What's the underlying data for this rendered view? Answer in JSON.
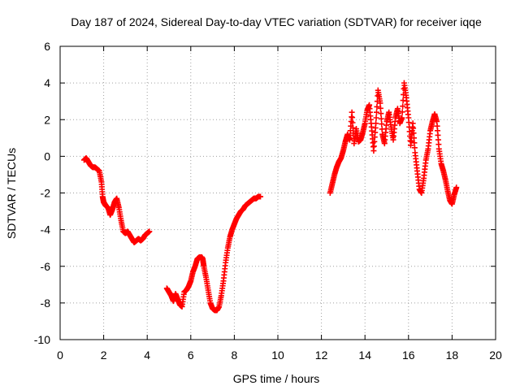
{
  "chart_data": {
    "type": "scatter",
    "title": "Day 187 of 2024, Sidereal Day-to-day VTEC variation (SDTVAR) for receiver iqqe",
    "xlabel": "GPS time / hours",
    "ylabel": "SDTVAR / TECUs",
    "xlim": [
      0,
      20
    ],
    "ylim": [
      -10,
      6
    ],
    "x_ticks": [
      0,
      2,
      4,
      6,
      8,
      10,
      12,
      14,
      16,
      18,
      20
    ],
    "y_ticks": [
      -10,
      -8,
      -6,
      -4,
      -2,
      0,
      2,
      4,
      6
    ],
    "x_tick_labels": [
      "0",
      "2",
      "4",
      "6",
      "8",
      "10",
      "12",
      "14",
      "16",
      "18",
      "20"
    ],
    "y_tick_labels": [
      "-10",
      "-8",
      "-6",
      "-4",
      "-2",
      "0",
      "2",
      "4",
      "6"
    ],
    "grid": true,
    "marker": "+",
    "series": [
      {
        "name": "SDTVAR",
        "color": "#ff0000",
        "segments": [
          {
            "x": [
              1.1,
              1.2,
              1.3,
              1.4,
              1.5,
              1.6,
              1.7,
              1.8,
              1.9,
              1.95,
              2.0,
              2.05,
              2.1,
              2.2,
              2.3,
              2.4,
              2.5,
              2.6,
              2.7,
              2.8,
              2.9,
              3.0,
              3.1,
              3.2,
              3.3,
              3.4,
              3.5,
              3.6,
              3.7,
              3.8,
              3.9,
              4.0,
              4.1
            ],
            "y": [
              -0.2,
              -0.1,
              -0.3,
              -0.5,
              -0.6,
              -0.6,
              -0.7,
              -0.8,
              -1.4,
              -2.2,
              -2.5,
              -2.6,
              -2.7,
              -2.8,
              -3.2,
              -2.9,
              -2.5,
              -2.3,
              -2.8,
              -3.5,
              -4.1,
              -4.2,
              -4.1,
              -4.3,
              -4.5,
              -4.7,
              -4.6,
              -4.5,
              -4.6,
              -4.5,
              -4.3,
              -4.2,
              -4.1
            ]
          },
          {
            "x": [
              4.9,
              5.0,
              5.1,
              5.2,
              5.3,
              5.4,
              5.5,
              5.6,
              5.7,
              5.8,
              5.9,
              6.0,
              6.1,
              6.2,
              6.3,
              6.4,
              6.5,
              6.55,
              6.6,
              6.7,
              6.8,
              6.9,
              7.0,
              7.1,
              7.2,
              7.3,
              7.4,
              7.5,
              7.6,
              7.7,
              7.8,
              7.9,
              8.0,
              8.1,
              8.2,
              8.3,
              8.4,
              8.5,
              8.6,
              8.7,
              8.8,
              8.9,
              9.0,
              9.1,
              9.2
            ],
            "y": [
              -7.2,
              -7.4,
              -7.6,
              -7.9,
              -7.5,
              -7.8,
              -8.1,
              -8.2,
              -7.4,
              -7.3,
              -7.1,
              -6.8,
              -6.3,
              -6.0,
              -5.6,
              -5.5,
              -5.5,
              -5.6,
              -6.0,
              -6.6,
              -7.3,
              -8.0,
              -8.3,
              -8.4,
              -8.4,
              -8.2,
              -7.6,
              -6.8,
              -5.8,
              -5.0,
              -4.4,
              -4.0,
              -3.7,
              -3.4,
              -3.2,
              -3.0,
              -2.9,
              -2.7,
              -2.6,
              -2.5,
              -2.4,
              -2.3,
              -2.3,
              -2.2,
              -2.2
            ]
          },
          {
            "x": [
              12.4,
              12.5,
              12.6,
              12.7,
              12.8,
              12.9,
              13.0,
              13.1,
              13.2,
              13.3,
              13.4,
              13.5,
              13.6,
              13.7,
              13.8,
              13.9,
              14.0,
              14.1,
              14.2,
              14.3,
              14.4,
              14.5,
              14.6,
              14.7,
              14.8,
              14.9,
              15.0,
              15.1,
              15.2,
              15.3,
              15.4,
              15.5,
              15.6,
              15.7,
              15.8,
              15.9,
              16.0,
              16.1,
              16.2,
              16.3,
              16.4,
              16.5,
              16.6,
              16.7,
              16.8,
              16.9,
              17.0,
              17.1,
              17.2,
              17.3,
              17.4,
              17.5,
              17.6,
              17.7,
              17.8,
              17.9,
              18.0,
              18.1,
              18.2
            ],
            "y": [
              -2.0,
              -1.5,
              -1.0,
              -0.6,
              -0.3,
              -0.1,
              0.3,
              0.8,
              1.2,
              0.9,
              2.4,
              0.7,
              1.5,
              0.8,
              0.9,
              1.3,
              1.8,
              2.5,
              2.8,
              1.6,
              0.3,
              1.8,
              3.6,
              2.9,
              1.2,
              0.7,
              1.9,
              2.4,
              1.6,
              0.9,
              2.1,
              2.6,
              1.8,
              2.1,
              4.0,
              3.2,
              2.1,
              0.6,
              1.8,
              0.2,
              -0.8,
              -1.8,
              -2.0,
              -1.2,
              -0.2,
              0.4,
              1.4,
              1.9,
              2.3,
              1.9,
              0.4,
              -0.4,
              -0.8,
              -1.3,
              -1.9,
              -2.4,
              -2.6,
              -2.1,
              -1.7
            ]
          }
        ]
      }
    ]
  }
}
